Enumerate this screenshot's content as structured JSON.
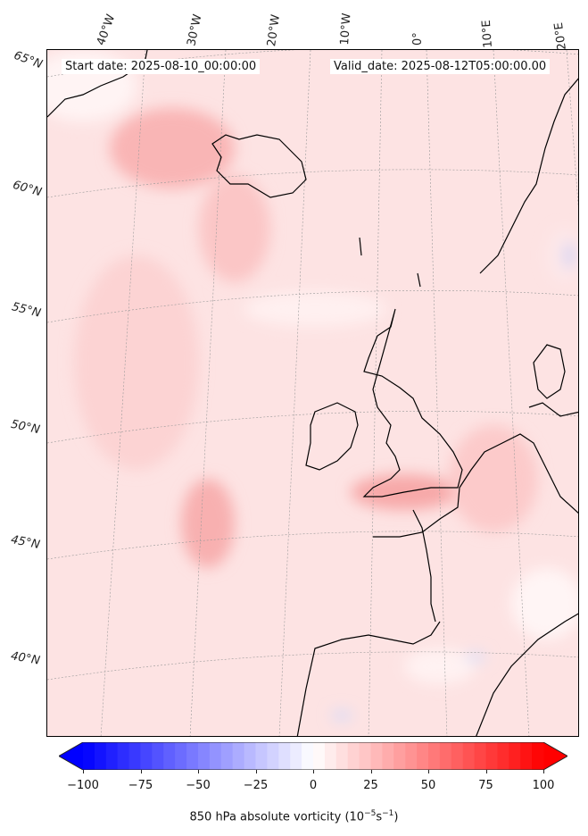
{
  "header": {
    "start_date": "Start date: 2025-08-10_00:00:00",
    "valid_date": "Valid_date: 2025-08-12T05:00:00.00"
  },
  "lon_labels": [
    "40°W",
    "30°W",
    "20°W",
    "10°W",
    "0°",
    "10°E",
    "20°E"
  ],
  "lat_labels": [
    "65°N",
    "60°N",
    "55°N",
    "50°N",
    "45°N",
    "40°N"
  ],
  "chart_data": {
    "type": "heatmap",
    "title": "850 hPa absolute vorticity",
    "colorbar": {
      "colormap": "bwr",
      "range": [
        -100,
        100
      ],
      "extend": "both",
      "ticks": [
        "−100",
        "−75",
        "−50",
        "−25",
        "0",
        "25",
        "50",
        "75",
        "100"
      ],
      "tick_values": [
        -100,
        -75,
        -50,
        -25,
        0,
        25,
        50,
        75,
        100
      ],
      "levels": 40,
      "label_parts": [
        "850 hPa absolute vorticity (10",
        "−5",
        "s",
        "−1",
        ")"
      ]
    },
    "colors": {
      "min": "#0000ff",
      "mid": "#ffffff",
      "max": "#ff0000"
    }
  }
}
